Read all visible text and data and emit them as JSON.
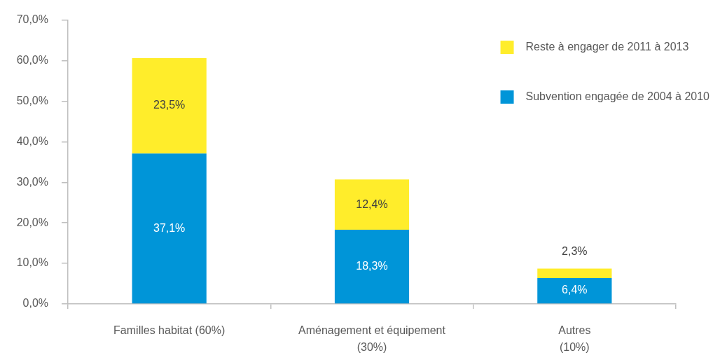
{
  "chart_data": {
    "type": "bar",
    "stacked": true,
    "categories": [
      "Familles habitat (60%)",
      "Aménagement et équipement\n(30%)",
      "Autres\n(10%)"
    ],
    "series": [
      {
        "name": "Subvention engagée de 2004 à 2010",
        "color": "#0095d8",
        "values": [
          37.1,
          18.3,
          6.4
        ],
        "value_labels": [
          "37,1%",
          "18,3%",
          "6,4%"
        ]
      },
      {
        "name": "Reste à engager de 2011 à 2013",
        "color": "#ffed2b",
        "values": [
          23.5,
          12.4,
          2.3
        ],
        "value_labels": [
          "23,5%",
          "12,4%",
          "2,3%"
        ]
      }
    ],
    "ylim": [
      0,
      70
    ],
    "yticks": [
      {
        "value": 0,
        "label": "0,0%"
      },
      {
        "value": 10,
        "label": "10,0%"
      },
      {
        "value": 20,
        "label": "20,0%"
      },
      {
        "value": 30,
        "label": "30,0%"
      },
      {
        "value": 40,
        "label": "40,0%"
      },
      {
        "value": 50,
        "label": "50,0%"
      },
      {
        "value": 60,
        "label": "60,0%"
      },
      {
        "value": 70,
        "label": "70,0%"
      }
    ],
    "grid": false,
    "legend": "top right"
  }
}
